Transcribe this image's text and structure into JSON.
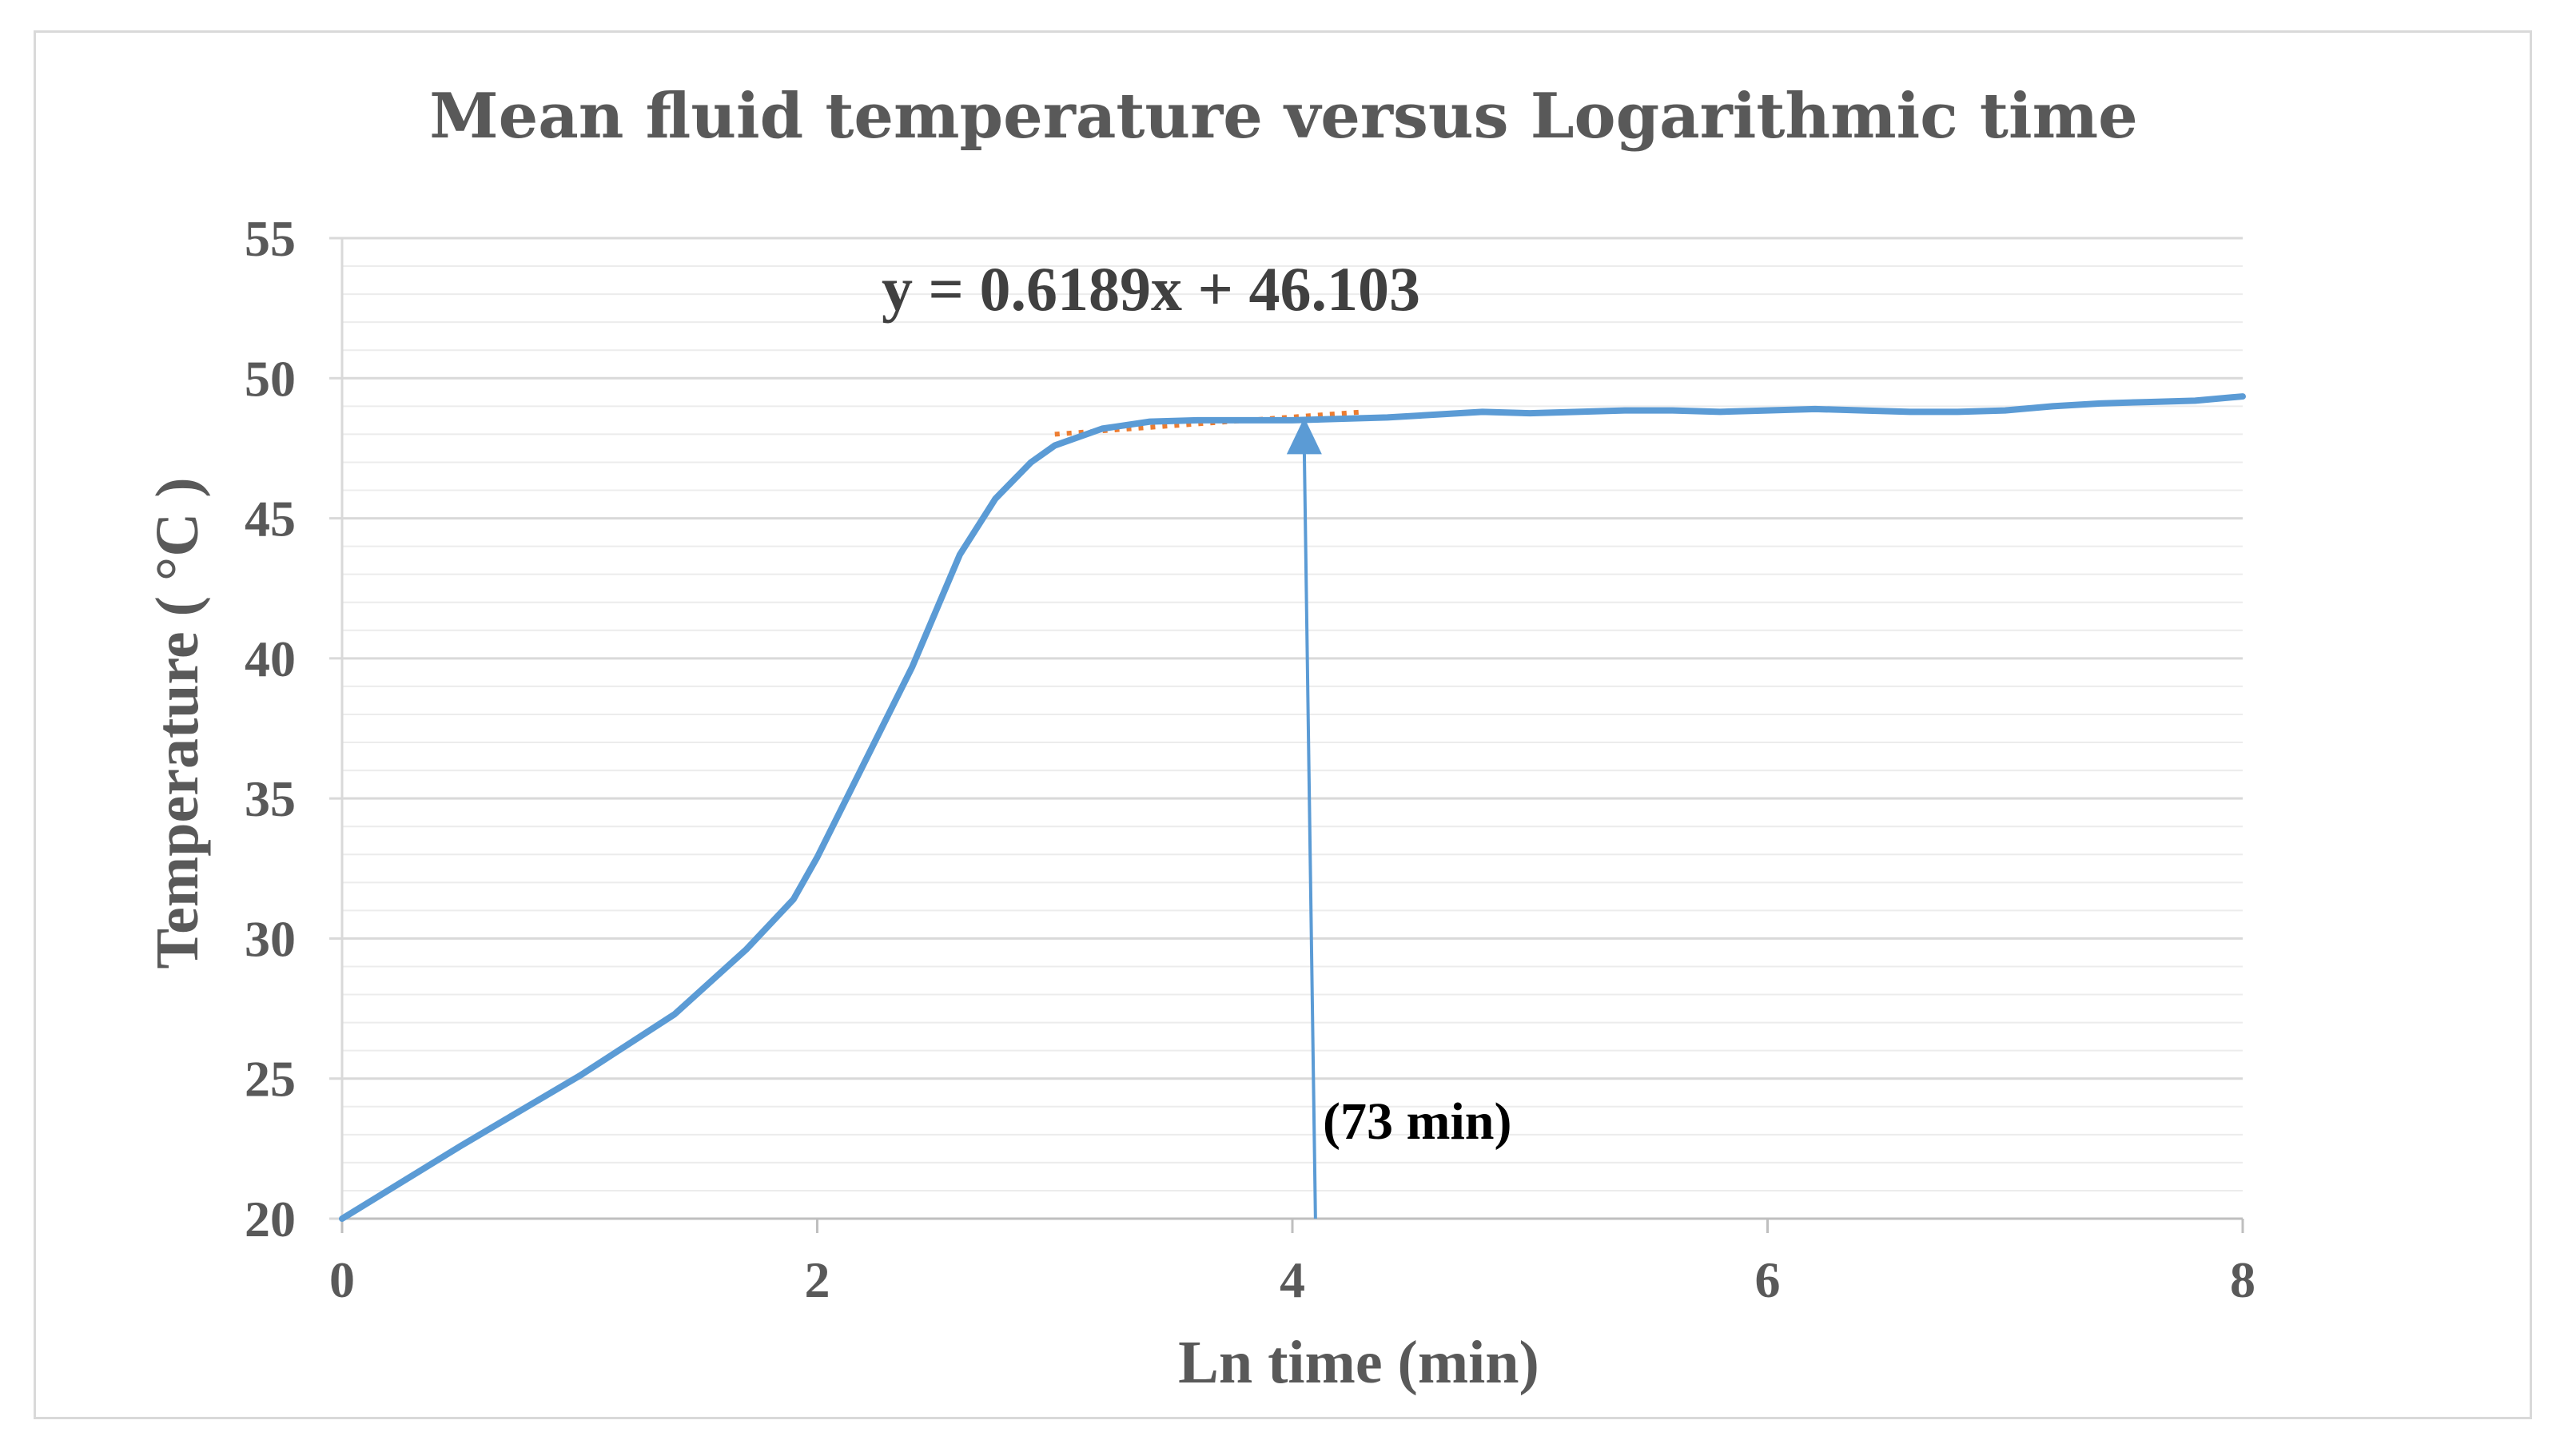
{
  "chart_data": {
    "type": "line",
    "title": "Mean fluid temperature versus Logarithmic time",
    "xlabel": "Ln time (min)",
    "ylabel": "Temperature ( °C )",
    "xlim": [
      0,
      8
    ],
    "ylim": [
      20,
      55
    ],
    "xticks": [
      0,
      2,
      4,
      6,
      8
    ],
    "yticks": [
      20,
      25,
      30,
      35,
      40,
      45,
      50,
      55
    ],
    "minor_gridlines_y": 1,
    "grid": true,
    "legend": "none",
    "colors": {
      "series": "#5b9bd5",
      "trendline": "#ed7d31",
      "arrow": "#5b9bd5",
      "grid": "#d9d9d9"
    },
    "series": [
      {
        "x": [
          0,
          0.5,
          1.0,
          1.4,
          1.7,
          1.9,
          2.0,
          2.2,
          2.4,
          2.6,
          2.75,
          2.9,
          3.0,
          3.2,
          3.4,
          3.6,
          3.8,
          4.0,
          4.2,
          4.4,
          4.6,
          4.8,
          5.0,
          5.2,
          5.4,
          5.6,
          5.8,
          6.0,
          6.2,
          6.4,
          6.6,
          6.8,
          7.0,
          7.2,
          7.4,
          7.6,
          7.8,
          8.0
        ],
        "y": [
          20.0,
          22.6,
          25.1,
          27.3,
          29.6,
          31.4,
          32.9,
          36.3,
          39.7,
          43.7,
          45.7,
          47.0,
          47.6,
          48.2,
          48.45,
          48.5,
          48.5,
          48.5,
          48.55,
          48.6,
          48.7,
          48.8,
          48.75,
          48.8,
          48.85,
          48.85,
          48.8,
          48.85,
          48.9,
          48.85,
          48.8,
          48.8,
          48.85,
          49.0,
          49.1,
          49.15,
          49.2,
          49.35
        ]
      }
    ],
    "trendline": {
      "equation": "y = 0.6189x + 46.103",
      "x": [
        3.0,
        4.3
      ],
      "y": [
        48.0,
        48.8
      ],
      "style": "dotted"
    },
    "annotation": {
      "text": "(73 min)",
      "arrow_x": 4.05,
      "arrow_tip_y": 48.6,
      "arrow_base_y": 20
    }
  }
}
